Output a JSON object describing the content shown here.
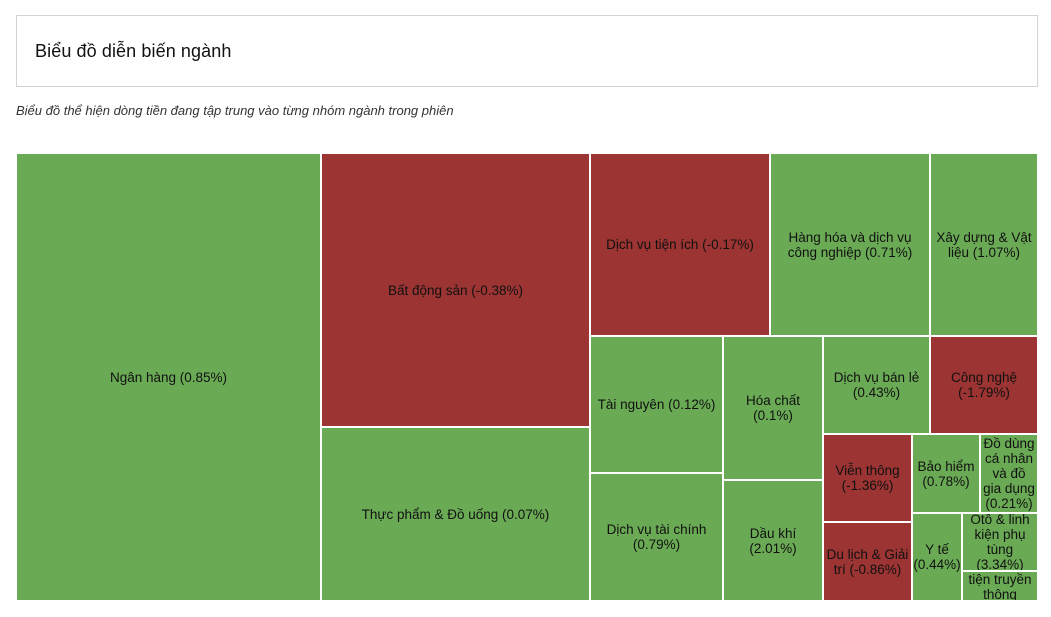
{
  "header": {
    "title": "Biểu đồ diễn biến ngành"
  },
  "subtitle": "Biểu đồ thể hiện dòng tiền đang tập trung vào từng nhóm ngành trong phiên",
  "colors": {
    "positive": "#6aaa55",
    "negative": "#9b3432",
    "border": "#ffffff"
  },
  "chart_data": {
    "type": "treemap",
    "title": "Biểu đồ diễn biến ngành",
    "items": [
      {
        "label": "Ngân hàng (0.85%)",
        "name": "Ngân hàng",
        "change": 0.85
      },
      {
        "label": "Bất động sản (-0.38%)",
        "name": "Bất động sản",
        "change": -0.38
      },
      {
        "label": "Thực phẩm & Đồ uống (0.07%)",
        "name": "Thực phẩm & Đồ uống",
        "change": 0.07
      },
      {
        "label": "Dịch vụ tiện ích (-0.17%)",
        "name": "Dịch vụ tiện ích",
        "change": -0.17
      },
      {
        "label": "Hàng hóa và dịch vụ công nghiệp (0.71%)",
        "name": "Hàng hóa và dịch vụ công nghiệp",
        "change": 0.71
      },
      {
        "label": "Xây dựng & Vật liệu (1.07%)",
        "name": "Xây dựng & Vật liệu",
        "change": 1.07
      },
      {
        "label": "Tài nguyên (0.12%)",
        "name": "Tài nguyên",
        "change": 0.12
      },
      {
        "label": "Dịch vụ tài chính (0.79%)",
        "name": "Dịch vụ tài chính",
        "change": 0.79
      },
      {
        "label": "Hóa chất (0.1%)",
        "name": "Hóa chất",
        "change": 0.1
      },
      {
        "label": "Dầu khí (2.01%)",
        "name": "Dầu khí",
        "change": 2.01
      },
      {
        "label": "Dịch vụ bán lẻ (0.43%)",
        "name": "Dịch vụ bán lẻ",
        "change": 0.43
      },
      {
        "label": "Công nghệ (-1.79%)",
        "name": "Công nghệ",
        "change": -1.79
      },
      {
        "label": "Viễn thông (-1.36%)",
        "name": "Viễn thông",
        "change": -1.36
      },
      {
        "label": "Du lịch & Giải trí (-0.86%)",
        "name": "Du lịch & Giải trí",
        "change": -0.86
      },
      {
        "label": "Bảo hiểm (0.78%)",
        "name": "Bảo hiểm",
        "change": 0.78
      },
      {
        "label": "Đồ dùng cá nhân và đồ gia dụng (0.21%)",
        "name": "Đồ dùng cá nhân và đồ gia dụng",
        "change": 0.21
      },
      {
        "label": "Y tế (0.44%)",
        "name": "Y tế",
        "change": 0.44
      },
      {
        "label": "Ôtô & linh kiện phụ tùng (3.34%)",
        "name": "Ôtô & linh kiện phụ tùng",
        "change": 3.34
      },
      {
        "label": "tiện truyền thông",
        "name": "Truyền thông",
        "change": null
      }
    ]
  }
}
